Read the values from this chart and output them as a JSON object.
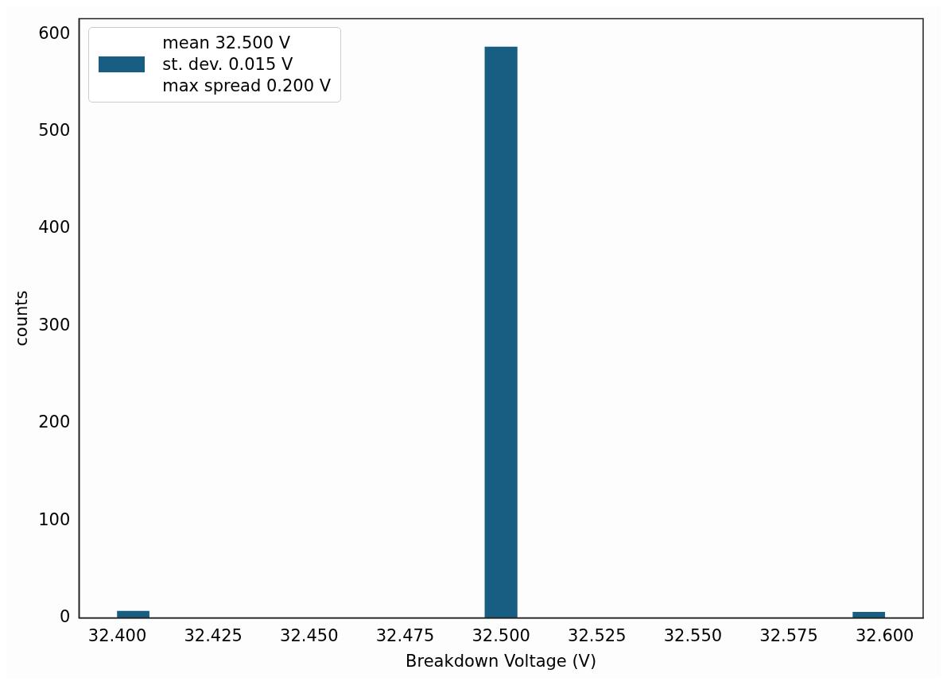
{
  "chart_data": {
    "type": "histogram",
    "xlabel": "Breakdown Voltage (V)",
    "ylabel": "counts",
    "bins": [
      32.4,
      32.4083,
      32.4958,
      32.5042,
      32.5917,
      32.6
    ],
    "series": [
      {
        "name": "mean 32.500 V\nst. dev. 0.015 V\nmax spread 0.200 V",
        "color": "#175e82",
        "values": [
          7,
          0,
          587,
          0,
          6
        ]
      }
    ],
    "xlim": [
      32.39,
      32.61
    ],
    "ylim": [
      0,
      616
    ],
    "xticks": [
      {
        "value": 32.4,
        "label": "32.400"
      },
      {
        "value": 32.425,
        "label": "32.425"
      },
      {
        "value": 32.45,
        "label": "32.450"
      },
      {
        "value": 32.475,
        "label": "32.475"
      },
      {
        "value": 32.5,
        "label": "32.500"
      },
      {
        "value": 32.525,
        "label": "32.525"
      },
      {
        "value": 32.55,
        "label": "32.550"
      },
      {
        "value": 32.575,
        "label": "32.575"
      },
      {
        "value": 32.6,
        "label": "32.600"
      }
    ],
    "yticks": [
      0,
      100,
      200,
      300,
      400,
      500,
      600
    ],
    "legend": "top left"
  }
}
